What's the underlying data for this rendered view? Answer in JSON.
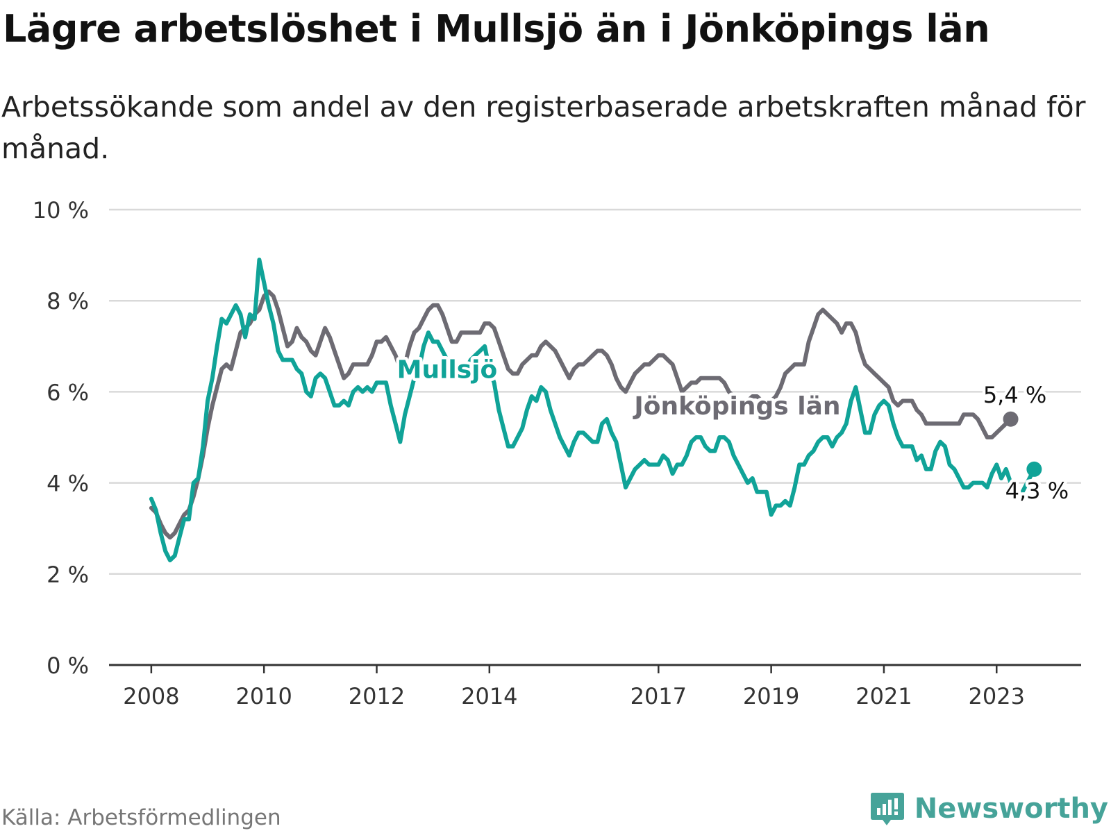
{
  "header": {
    "title": "Lägre arbetslöshet i Mullsjö än i Jönköpings län",
    "subtitle": "Arbetssökande som andel av den registerbaserade arbetskraften månad för månad."
  },
  "footer": {
    "source": "Källa: Arbetsförmedlingen",
    "brand": "Newsworthy"
  },
  "colors": {
    "mullsjo": "#10a398",
    "lan": "#6d6b73",
    "grid": "#d9d9d9",
    "axis": "#333333",
    "brand": "#46a399"
  },
  "chart_data": {
    "type": "line",
    "title": "Lägre arbetslöshet i Mullsjö än i Jönköpings län",
    "xlabel": "",
    "ylabel": "",
    "x_start": 2008.0,
    "x_step": 0.0833333,
    "xlim": [
      2007.25,
      2024.5
    ],
    "ylim": [
      0,
      10
    ],
    "y_ticks": [
      0,
      2,
      4,
      6,
      8,
      10
    ],
    "y_tick_labels": [
      "0 %",
      "2 %",
      "4 %",
      "6 %",
      "8 %",
      "10 %"
    ],
    "x_ticks": [
      2008,
      2010,
      2012,
      2014,
      2017,
      2019,
      2021,
      2023
    ],
    "x_tick_labels": [
      "2008",
      "2010",
      "2012",
      "2014",
      "2017",
      "2019",
      "2021",
      "2023"
    ],
    "grid": true,
    "series": [
      {
        "name": "Jönköpings län",
        "color": "#6d6b73",
        "label": "Jönköpings län",
        "end_label": "5,4 %",
        "values": [
          3.45,
          3.35,
          3.1,
          2.9,
          2.8,
          2.9,
          3.1,
          3.3,
          3.4,
          3.7,
          4.1,
          4.6,
          5.2,
          5.7,
          6.1,
          6.5,
          6.6,
          6.5,
          6.9,
          7.3,
          7.4,
          7.5,
          7.7,
          7.8,
          8.1,
          8.2,
          8.1,
          7.8,
          7.4,
          7.0,
          7.1,
          7.4,
          7.2,
          7.1,
          6.9,
          6.8,
          7.1,
          7.4,
          7.2,
          6.9,
          6.6,
          6.3,
          6.4,
          6.6,
          6.6,
          6.6,
          6.6,
          6.8,
          7.1,
          7.1,
          7.2,
          7.0,
          6.8,
          6.5,
          6.6,
          7.0,
          7.3,
          7.4,
          7.6,
          7.8,
          7.9,
          7.9,
          7.7,
          7.4,
          7.1,
          7.1,
          7.3,
          7.3,
          7.3,
          7.3,
          7.3,
          7.5,
          7.5,
          7.4,
          7.1,
          6.8,
          6.5,
          6.4,
          6.4,
          6.6,
          6.7,
          6.8,
          6.8,
          7.0,
          7.1,
          7.0,
          6.9,
          6.7,
          6.5,
          6.3,
          6.5,
          6.6,
          6.6,
          6.7,
          6.8,
          6.9,
          6.9,
          6.8,
          6.6,
          6.3,
          6.1,
          6.0,
          6.2,
          6.4,
          6.5,
          6.6,
          6.6,
          6.7,
          6.8,
          6.8,
          6.7,
          6.6,
          6.3,
          6.0,
          6.1,
          6.2,
          6.2,
          6.3,
          6.3,
          6.3,
          6.3,
          6.3,
          6.2,
          6.0,
          5.9,
          5.8,
          5.8,
          5.8,
          5.9,
          5.9,
          5.8,
          5.8,
          5.8,
          5.9,
          6.1,
          6.4,
          6.5,
          6.6,
          6.6,
          6.6,
          7.1,
          7.4,
          7.7,
          7.8,
          7.7,
          7.6,
          7.5,
          7.3,
          7.5,
          7.5,
          7.3,
          6.9,
          6.6,
          6.5,
          6.4,
          6.3,
          6.2,
          6.1,
          5.8,
          5.7,
          5.8,
          5.8,
          5.8,
          5.6,
          5.5,
          5.3,
          5.3,
          5.3,
          5.3,
          5.3,
          5.3,
          5.3,
          5.3,
          5.5,
          5.5,
          5.5,
          5.4,
          5.2,
          5.0,
          5.0,
          5.1,
          5.2,
          5.3,
          5.4
        ]
      },
      {
        "name": "Mullsjö",
        "color": "#10a398",
        "label": "Mullsjö",
        "end_label": "4,3 %",
        "values": [
          3.65,
          3.4,
          2.9,
          2.5,
          2.3,
          2.4,
          2.8,
          3.2,
          3.2,
          4.0,
          4.1,
          4.8,
          5.8,
          6.3,
          7.0,
          7.6,
          7.5,
          7.7,
          7.9,
          7.7,
          7.2,
          7.7,
          7.6,
          8.9,
          8.4,
          7.9,
          7.5,
          6.9,
          6.7,
          6.7,
          6.7,
          6.5,
          6.4,
          6.0,
          5.9,
          6.3,
          6.4,
          6.3,
          6.0,
          5.7,
          5.7,
          5.8,
          5.7,
          6.0,
          6.1,
          6.0,
          6.1,
          6.0,
          6.2,
          6.2,
          6.2,
          5.7,
          5.3,
          4.9,
          5.5,
          5.9,
          6.3,
          6.5,
          7.0,
          7.3,
          7.1,
          7.1,
          6.9,
          6.7,
          6.5,
          6.3,
          6.4,
          6.5,
          6.7,
          6.8,
          6.9,
          7.0,
          6.5,
          6.2,
          5.6,
          5.2,
          4.8,
          4.8,
          5.0,
          5.2,
          5.6,
          5.9,
          5.8,
          6.1,
          6.0,
          5.6,
          5.3,
          5.0,
          4.8,
          4.6,
          4.9,
          5.1,
          5.1,
          5.0,
          4.9,
          4.9,
          5.3,
          5.4,
          5.1,
          4.9,
          4.4,
          3.9,
          4.1,
          4.3,
          4.4,
          4.5,
          4.4,
          4.4,
          4.4,
          4.6,
          4.5,
          4.2,
          4.4,
          4.4,
          4.6,
          4.9,
          5.0,
          5.0,
          4.8,
          4.7,
          4.7,
          5.0,
          5.0,
          4.9,
          4.6,
          4.4,
          4.2,
          4.0,
          4.1,
          3.8,
          3.8,
          3.8,
          3.3,
          3.5,
          3.5,
          3.6,
          3.5,
          3.9,
          4.4,
          4.4,
          4.6,
          4.7,
          4.9,
          5.0,
          5.0,
          4.8,
          5.0,
          5.1,
          5.3,
          5.8,
          6.1,
          5.6,
          5.1,
          5.1,
          5.5,
          5.7,
          5.8,
          5.7,
          5.3,
          5.0,
          4.8,
          4.8,
          4.8,
          4.5,
          4.6,
          4.3,
          4.3,
          4.7,
          4.9,
          4.8,
          4.4,
          4.3,
          4.1,
          3.9,
          3.9,
          4.0,
          4.0,
          4.0,
          3.9,
          4.2,
          4.4,
          4.1,
          4.3,
          4.0,
          3.7,
          3.7,
          3.9,
          4.1,
          4.3
        ]
      }
    ]
  }
}
